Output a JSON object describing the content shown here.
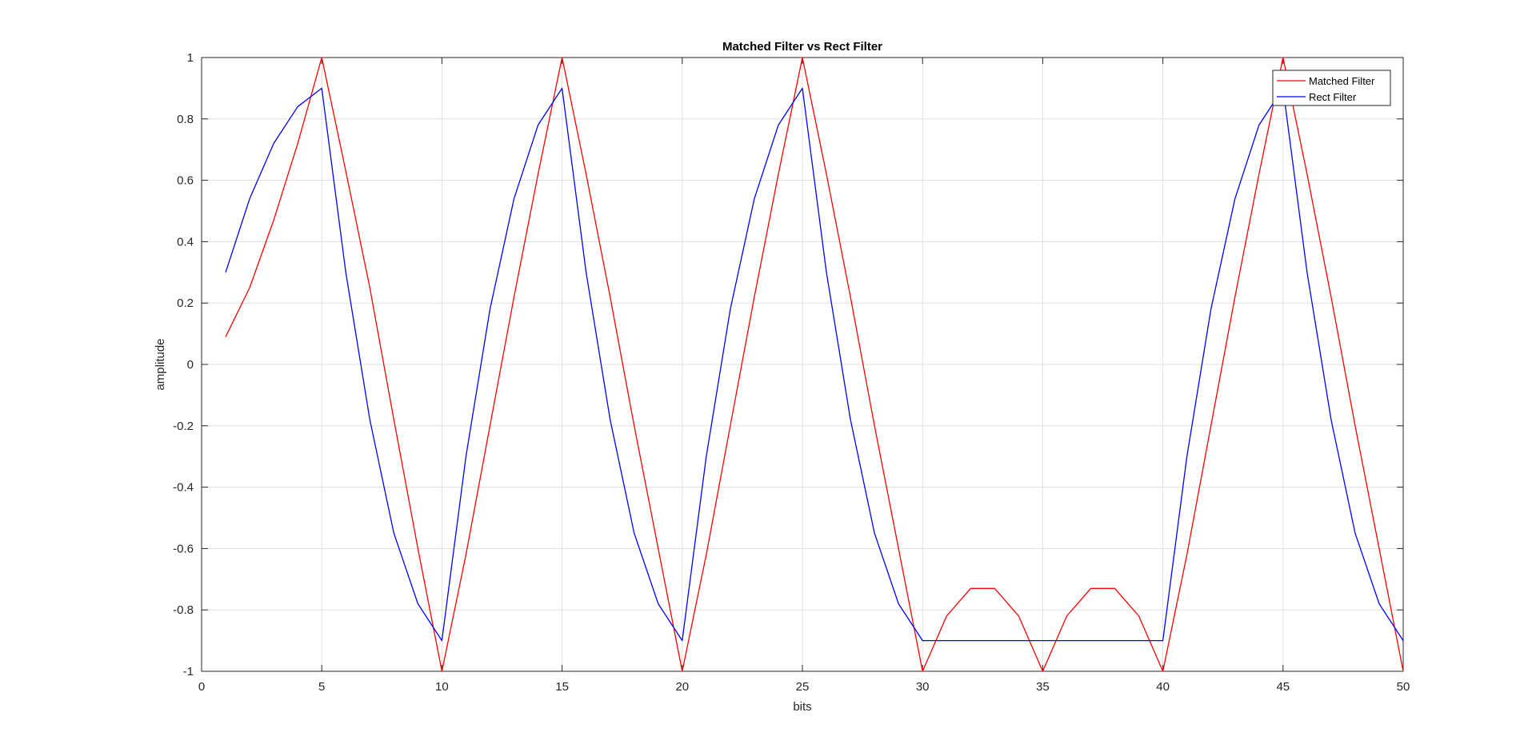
{
  "chart_data": {
    "type": "line",
    "title": "Matched Filter vs Rect Filter",
    "xlabel": "bits",
    "ylabel": "amplitude",
    "xlim": [
      0,
      50
    ],
    "ylim": [
      -1,
      1
    ],
    "xticks": [
      0,
      5,
      10,
      15,
      20,
      25,
      30,
      35,
      40,
      45,
      50
    ],
    "yticks": [
      1,
      0.8,
      0.6,
      0.4,
      0.2,
      0,
      -0.2,
      -0.4,
      -0.6,
      -0.8,
      -1
    ],
    "ytick_labels": [
      "1",
      "0.8",
      "0.6",
      "0.4",
      "0.2",
      "0",
      "-0.2",
      "-0.4",
      "-0.6",
      "-0.8",
      "-1"
    ],
    "grid": true,
    "legend_position": "top-right",
    "x": [
      1,
      2,
      3,
      4,
      5,
      6,
      7,
      8,
      9,
      10,
      11,
      12,
      13,
      14,
      15,
      16,
      17,
      18,
      19,
      20,
      21,
      22,
      23,
      24,
      25,
      26,
      27,
      28,
      29,
      30,
      31,
      32,
      33,
      34,
      35,
      36,
      37,
      38,
      39,
      40,
      41,
      42,
      43,
      44,
      45,
      46,
      47,
      48,
      49,
      50
    ],
    "series": [
      {
        "name": "Matched Filter",
        "color": "#ff0000",
        "values": [
          0.09,
          0.25,
          0.47,
          0.72,
          1,
          0.63,
          0.25,
          -0.18,
          -0.6,
          -1,
          -0.62,
          -0.2,
          0.22,
          0.62,
          1,
          0.62,
          0.22,
          -0.2,
          -0.6,
          -1,
          -0.62,
          -0.2,
          0.22,
          0.62,
          1,
          0.62,
          0.22,
          -0.2,
          -0.6,
          -1,
          -0.82,
          -0.73,
          -0.73,
          -0.82,
          -1,
          -0.82,
          -0.73,
          -0.73,
          -0.82,
          -1,
          -0.62,
          -0.2,
          0.22,
          0.62,
          1,
          0.62,
          0.22,
          -0.2,
          -0.6,
          -1
        ]
      },
      {
        "name": "Rect Filter",
        "color": "#0000ff",
        "values": [
          0.3,
          0.54,
          0.72,
          0.84,
          0.9,
          0.3,
          -0.18,
          -0.55,
          -0.78,
          -0.9,
          -0.3,
          0.18,
          0.54,
          0.78,
          0.9,
          0.3,
          -0.18,
          -0.55,
          -0.78,
          -0.9,
          -0.3,
          0.18,
          0.54,
          0.78,
          0.9,
          0.3,
          -0.18,
          -0.55,
          -0.78,
          -0.9,
          -0.9,
          -0.9,
          -0.9,
          -0.9,
          -0.9,
          -0.9,
          -0.9,
          -0.9,
          -0.9,
          -0.9,
          -0.3,
          0.18,
          0.54,
          0.78,
          0.9,
          0.3,
          -0.18,
          -0.55,
          -0.78,
          -0.9
        ]
      }
    ]
  }
}
